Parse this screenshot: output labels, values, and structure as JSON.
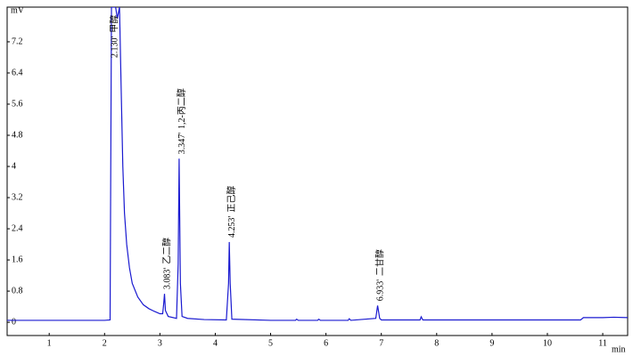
{
  "chart_data": {
    "type": "line",
    "y_label": "mV",
    "x_label": "min",
    "xlim": [
      0.24,
      11.45
    ],
    "xticks": [
      1,
      2,
      3,
      4,
      5,
      6,
      7,
      8,
      9,
      10,
      11
    ],
    "ylim": [
      -0.34,
      8.09
    ],
    "yticks": [
      0,
      0.8,
      1.6,
      2.4,
      3.2,
      4,
      4.8,
      5.6,
      6.4,
      7.2
    ],
    "color": "#1a1ad0",
    "x": [
      0.24,
      1.0,
      2.0,
      2.1,
      2.125,
      2.2,
      2.23,
      2.27,
      2.3,
      2.33,
      2.36,
      2.4,
      2.45,
      2.5,
      2.6,
      2.7,
      2.8,
      2.9,
      3.0,
      3.05,
      3.07,
      3.083,
      3.1,
      3.15,
      3.3,
      3.33,
      3.347,
      3.37,
      3.4,
      3.5,
      3.8,
      4.2,
      4.24,
      4.253,
      4.27,
      4.3,
      5.0,
      5.45,
      5.47,
      5.5,
      5.85,
      5.87,
      5.9,
      6.4,
      6.42,
      6.45,
      6.9,
      6.933,
      6.97,
      7.0,
      7.7,
      7.72,
      7.75,
      10.6,
      10.65,
      11.0,
      11.2,
      11.45
    ],
    "y": [
      0.05,
      0.05,
      0.05,
      0.06,
      8.09,
      8.09,
      7.8,
      8.09,
      6.0,
      4.0,
      2.8,
      2.0,
      1.4,
      1.0,
      0.65,
      0.45,
      0.35,
      0.28,
      0.22,
      0.22,
      0.5,
      0.73,
      0.3,
      0.15,
      0.1,
      1.5,
      4.2,
      1.0,
      0.15,
      0.1,
      0.07,
      0.06,
      1.0,
      2.06,
      1.0,
      0.08,
      0.05,
      0.05,
      0.08,
      0.05,
      0.05,
      0.08,
      0.05,
      0.05,
      0.09,
      0.05,
      0.1,
      0.43,
      0.1,
      0.06,
      0.06,
      0.14,
      0.06,
      0.06,
      0.12,
      0.12,
      0.13,
      0.12
    ],
    "peaks": [
      {
        "time": 2.13,
        "time_label": "2.130'",
        "compound": "甲醇"
      },
      {
        "time": 3.083,
        "time_label": "3.083'",
        "compound": "乙二醇"
      },
      {
        "time": 3.347,
        "time_label": "3.347'",
        "compound": "1,2-丙二醇"
      },
      {
        "time": 4.253,
        "time_label": "4.253'",
        "compound": "正己醇"
      },
      {
        "time": 6.933,
        "time_label": "6.933'",
        "compound": "二甘醇"
      }
    ]
  }
}
